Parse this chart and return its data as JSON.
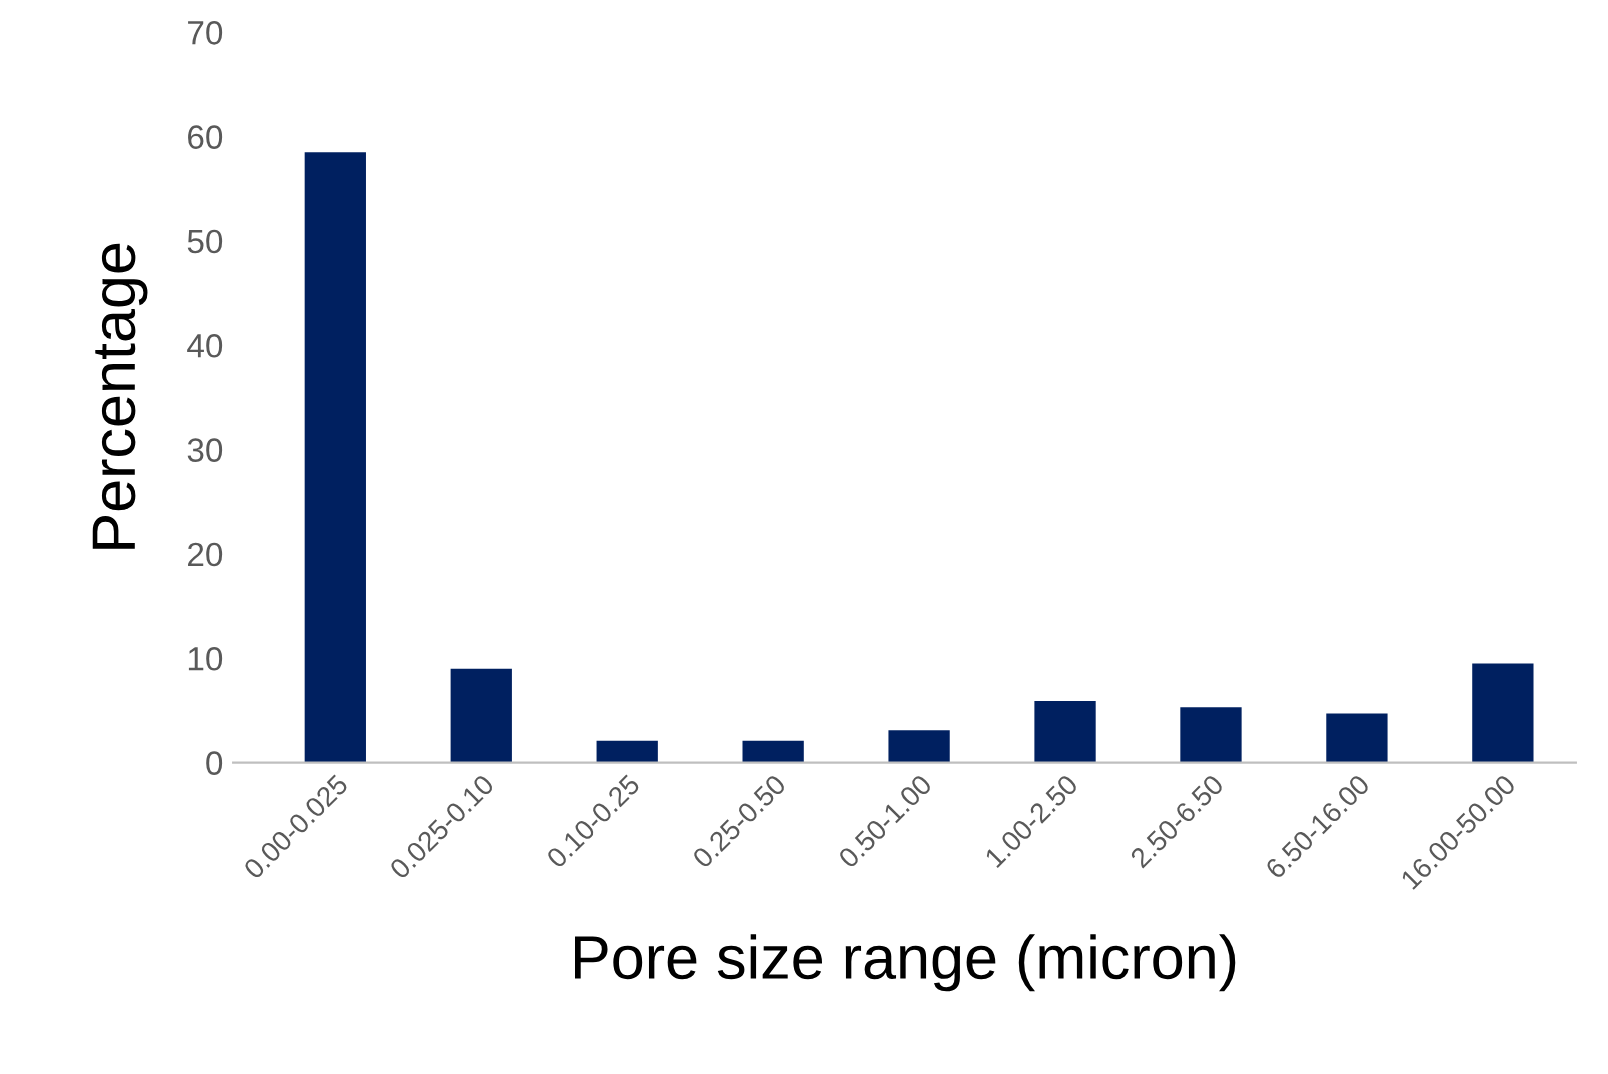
{
  "chart_data": {
    "type": "bar",
    "xlabel": "Pore size range (micron)",
    "ylabel": "Percentage",
    "categories": [
      "0.00-0.025",
      "0.025-0.10",
      "0.10-0.25",
      "0.25-0.50",
      "0.50-1.00",
      "1.00-2.50",
      "2.50-6.50",
      "6.50-16.00",
      "16.00-50.00"
    ],
    "values": [
      58.5,
      9.0,
      2.1,
      2.1,
      3.1,
      5.9,
      5.3,
      4.7,
      9.5
    ],
    "color": "#002060",
    "ylim": [
      0,
      70
    ],
    "yticks": [
      0,
      10,
      20,
      30,
      40,
      50,
      60,
      70
    ],
    "grid": false,
    "legend": false
  }
}
